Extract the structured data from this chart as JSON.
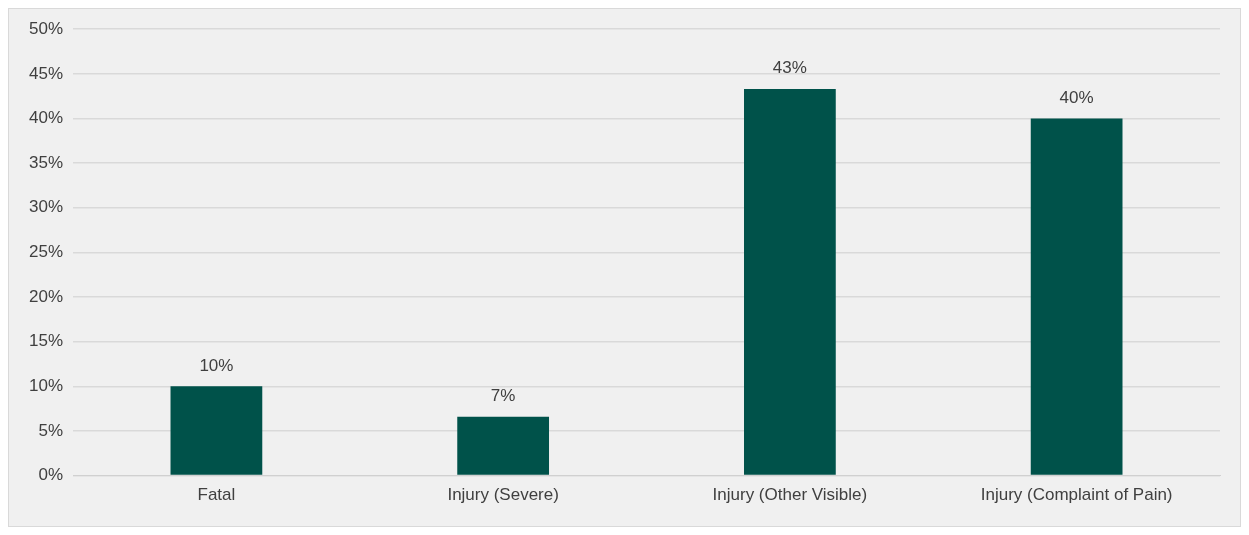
{
  "chart_data": {
    "type": "bar",
    "categories": [
      "Fatal",
      "Injury (Severe)",
      "Injury (Other Visible)",
      "Injury (Complaint of Pain)"
    ],
    "values": [
      10,
      6.6,
      43.3,
      40
    ],
    "value_labels": [
      "10%",
      "7%",
      "43%",
      "40%"
    ],
    "color": "#00524a",
    "ylim": [
      0,
      50
    ],
    "yticks": [
      {
        "value": 0,
        "label": "0%"
      },
      {
        "value": 5,
        "label": "5%"
      },
      {
        "value": 10,
        "label": "10%"
      },
      {
        "value": 15,
        "label": "15%"
      },
      {
        "value": 20,
        "label": "20%"
      },
      {
        "value": 25,
        "label": "25%"
      },
      {
        "value": 30,
        "label": "30%"
      },
      {
        "value": 35,
        "label": "35%"
      },
      {
        "value": 40,
        "label": "40%"
      },
      {
        "value": 45,
        "label": "45%"
      },
      {
        "value": 50,
        "label": "50%"
      }
    ],
    "grid": "y",
    "legend": false
  }
}
